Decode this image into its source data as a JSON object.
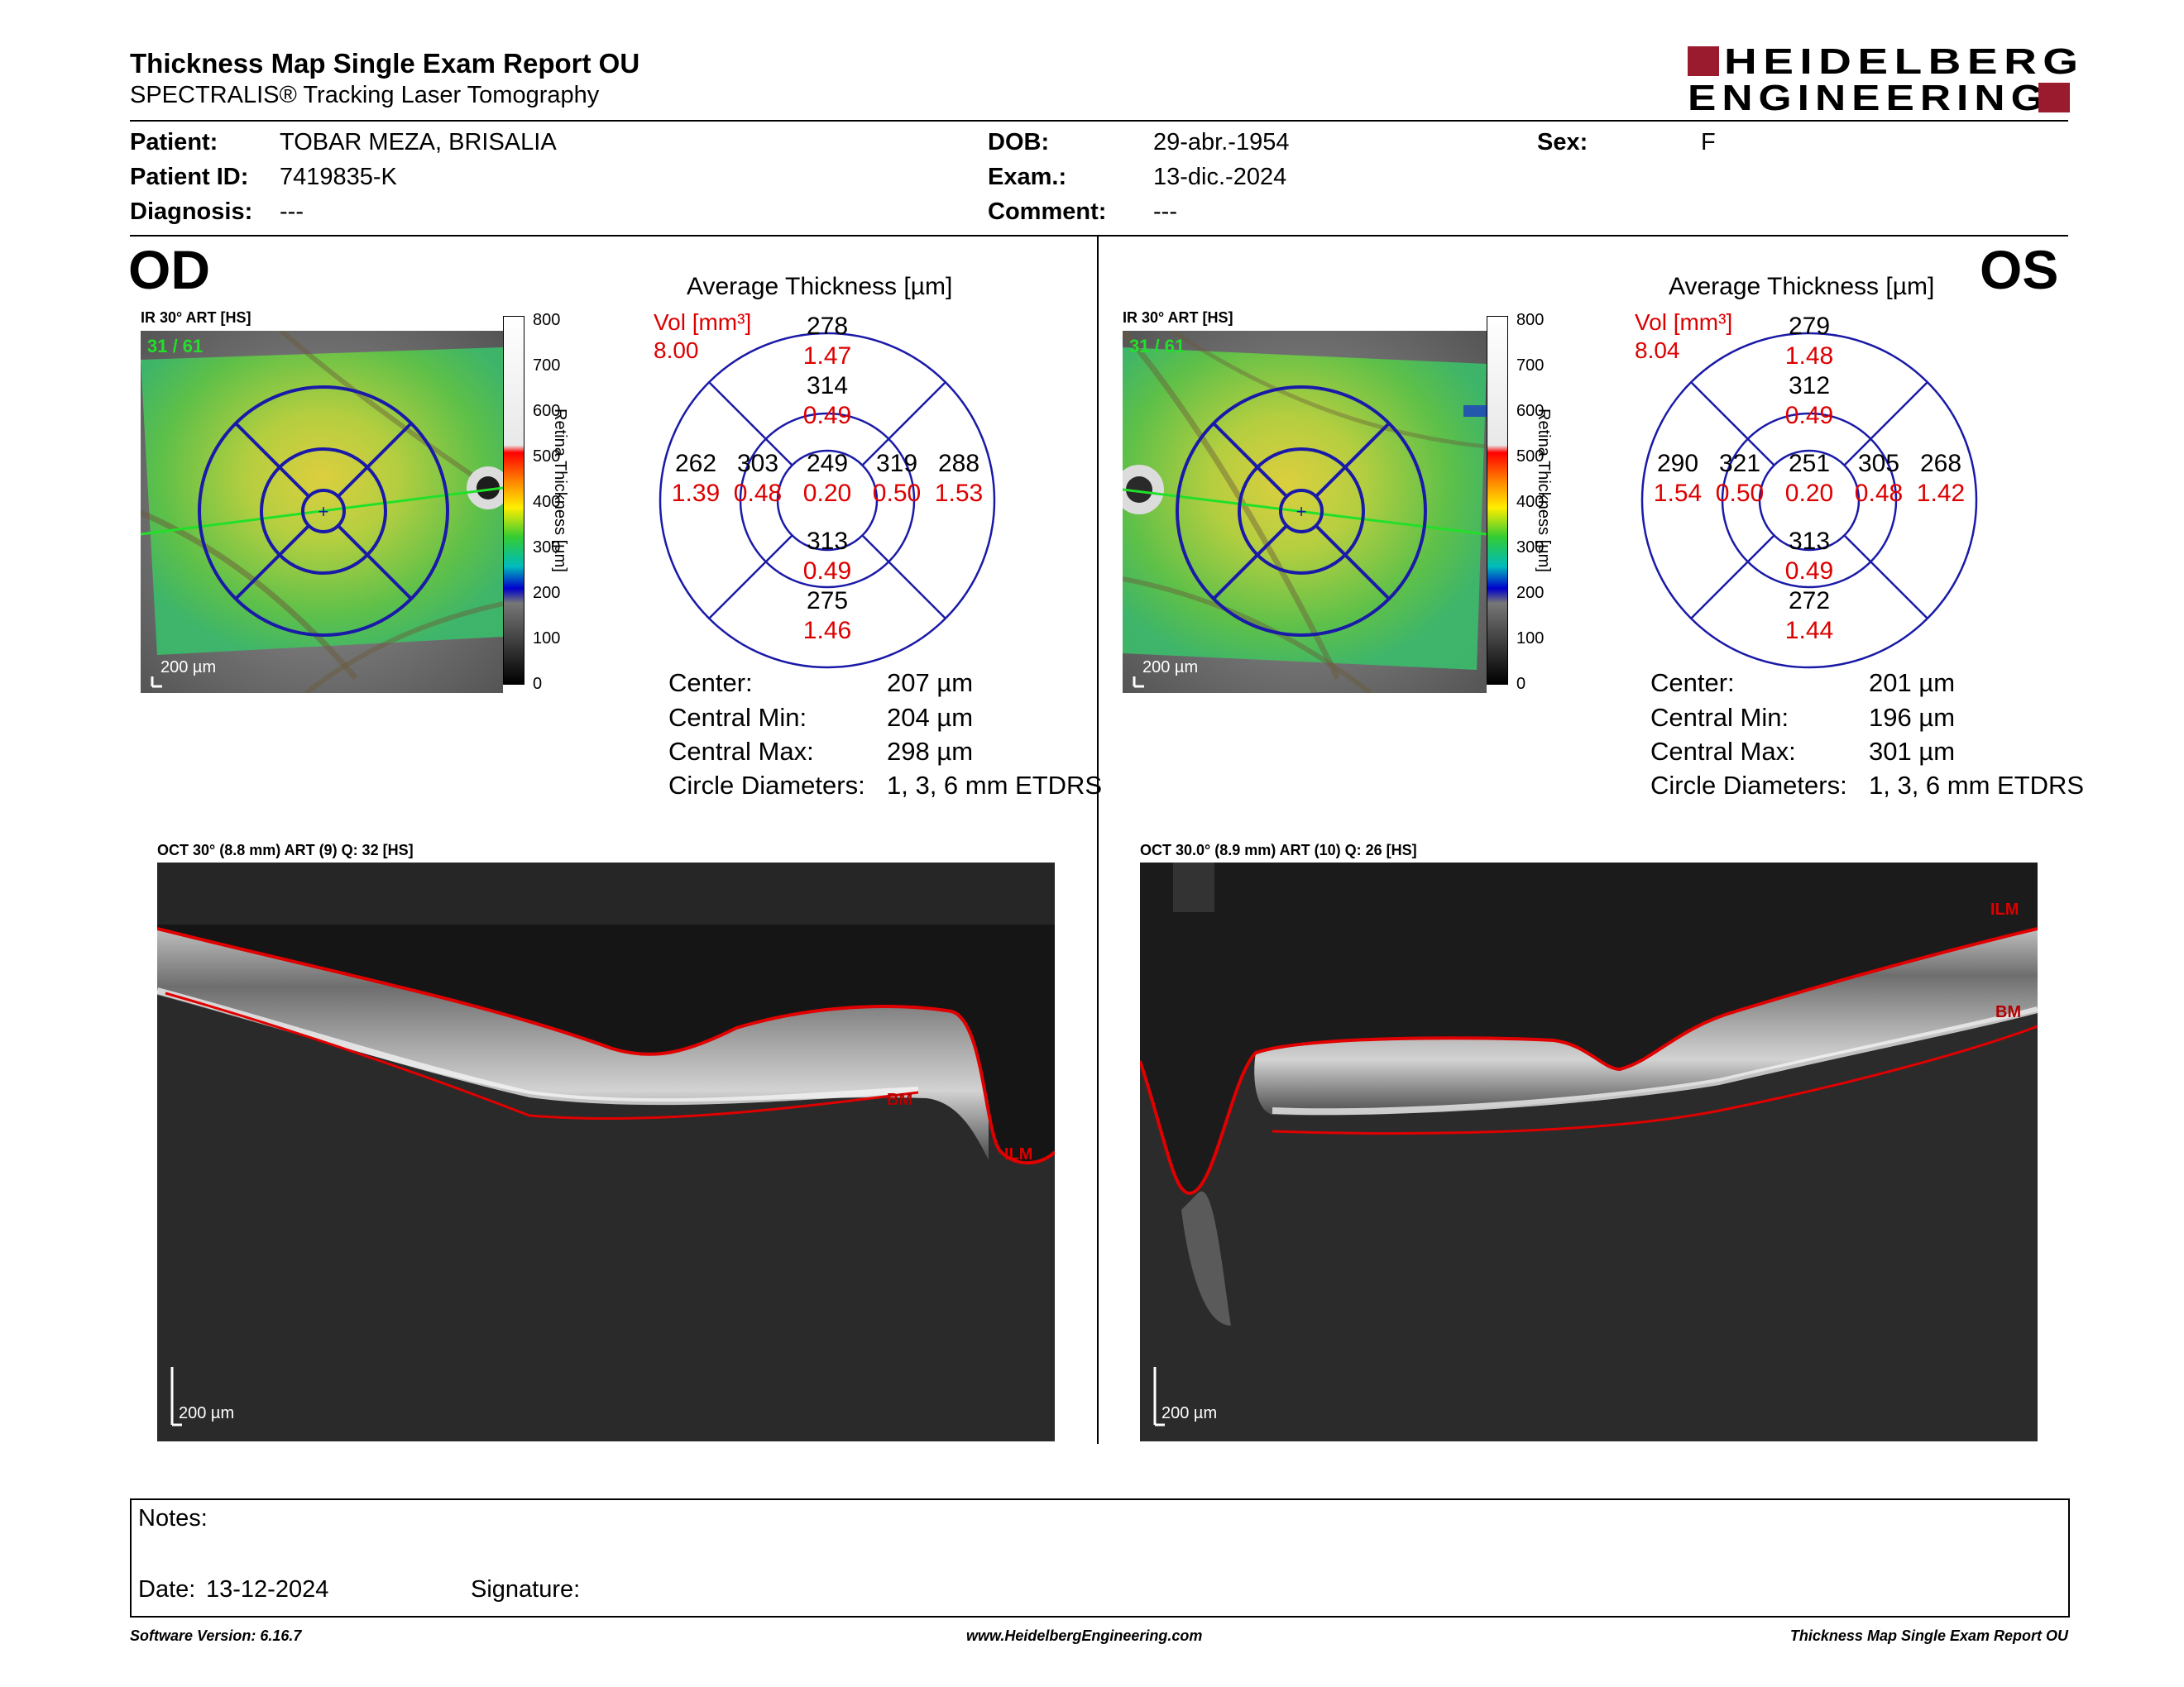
{
  "header": {
    "title": "Thickness Map Single Exam Report OU",
    "subtitle": "SPECTRALIS® Tracking Laser Tomography",
    "logo_line1": "HEIDELBERG",
    "logo_line2": "ENGINEERING"
  },
  "patient": {
    "patient_label": "Patient:",
    "patient_name": "TOBAR MEZA, BRISALIA",
    "id_label": "Patient ID:",
    "id": "7419835-K",
    "diagnosis_label": "Diagnosis:",
    "diagnosis": "---",
    "dob_label": "DOB:",
    "dob": "29-abr.-1954",
    "exam_label": "Exam.:",
    "exam": "13-dic.-2024",
    "comment_label": "Comment:",
    "comment": "---",
    "sex_label": "Sex:",
    "sex": "F"
  },
  "colors": {
    "blue": "#1a1aa8",
    "red": "#dd0000",
    "brand": "#9b1b2e"
  },
  "scale_labels": [
    "800",
    "700",
    "600",
    "500",
    "400",
    "300",
    "200",
    "100",
    "0"
  ],
  "scale_axis": "Retina Thickness [µm]",
  "od": {
    "label": "OD",
    "ir_title": "IR 30° ART [HS]",
    "ir_counter": "31 / 61",
    "ir_scale": "200 µm",
    "avg_title": "Average Thickness [µm]",
    "vol_label": "Vol [mm³]",
    "vol_total": "8.00",
    "grid": {
      "center": {
        "t": "249",
        "v": "0.20"
      },
      "inner_sup": {
        "t": "314",
        "v": "0.49"
      },
      "inner_inf": {
        "t": "313",
        "v": "0.49"
      },
      "inner_left": {
        "t": "303",
        "v": "0.48"
      },
      "inner_right": {
        "t": "319",
        "v": "0.50"
      },
      "outer_sup": {
        "t": "278",
        "v": "1.47"
      },
      "outer_inf": {
        "t": "275",
        "v": "1.46"
      },
      "outer_left": {
        "t": "262",
        "v": "1.39"
      },
      "outer_right": {
        "t": "288",
        "v": "1.53"
      }
    },
    "stats": [
      {
        "label": "Center:",
        "value": "207 µm"
      },
      {
        "label": "Central Min:",
        "value": "204 µm"
      },
      {
        "label": "Central Max:",
        "value": "298 µm"
      },
      {
        "label": "Circle Diameters:",
        "value": "1, 3, 6 mm ETDRS"
      }
    ],
    "oct_title": "OCT 30° (8.8 mm) ART (9) Q: 32 [HS]",
    "oct_scale": "200 µm",
    "tag_bm": "BM",
    "tag_ilm": "ILM"
  },
  "os": {
    "label": "OS",
    "ir_title": "IR 30° ART [HS]",
    "ir_counter": "31 / 61",
    "ir_scale": "200 µm",
    "avg_title": "Average Thickness [µm]",
    "vol_label": "Vol [mm³]",
    "vol_total": "8.04",
    "grid": {
      "center": {
        "t": "251",
        "v": "0.20"
      },
      "inner_sup": {
        "t": "312",
        "v": "0.49"
      },
      "inner_inf": {
        "t": "313",
        "v": "0.49"
      },
      "inner_left": {
        "t": "321",
        "v": "0.50"
      },
      "inner_right": {
        "t": "305",
        "v": "0.48"
      },
      "outer_sup": {
        "t": "279",
        "v": "1.48"
      },
      "outer_inf": {
        "t": "272",
        "v": "1.44"
      },
      "outer_left": {
        "t": "290",
        "v": "1.54"
      },
      "outer_right": {
        "t": "268",
        "v": "1.42"
      }
    },
    "stats": [
      {
        "label": "Center:",
        "value": "201 µm"
      },
      {
        "label": "Central Min:",
        "value": "196 µm"
      },
      {
        "label": "Central Max:",
        "value": "301 µm"
      },
      {
        "label": "Circle Diameters:",
        "value": "1, 3, 6 mm ETDRS"
      }
    ],
    "oct_title": "OCT 30.0° (8.9 mm) ART (10) Q: 26 [HS]",
    "oct_scale": "200 µm",
    "tag_bm": "BM",
    "tag_ilm": "ILM"
  },
  "notes": {
    "notes_label": "Notes:",
    "date_label": "Date:",
    "date": "13-12-2024",
    "signature_label": "Signature:"
  },
  "footer": {
    "version": "Software Version: 6.16.7",
    "website": "www.HeidelbergEngineering.com",
    "report": "Thickness Map Single Exam Report OU"
  }
}
